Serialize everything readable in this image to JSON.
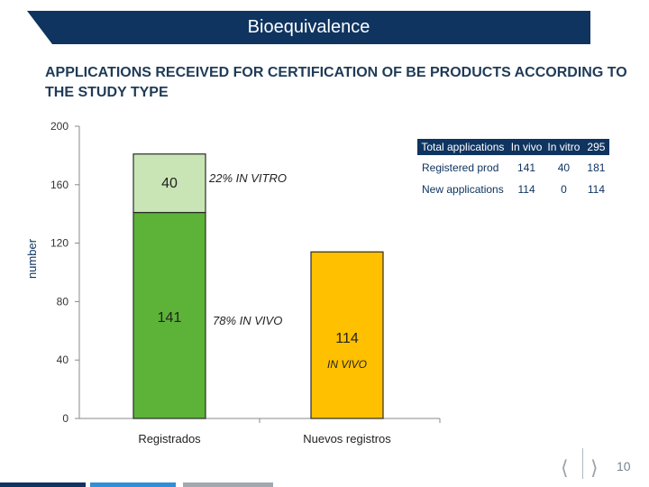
{
  "header": {
    "title": "Bioequivalence"
  },
  "subtitle": "APPLICATIONS RECEIVED FOR CERTIFICATION OF BE PRODUCTS ACCORDING TO THE STUDY TYPE",
  "chart_data": {
    "type": "bar",
    "stacked": true,
    "categories": [
      "Registrados",
      "Nuevos registros"
    ],
    "series": [
      {
        "values": [
          141,
          114
        ]
      },
      {
        "values": [
          40,
          0
        ]
      }
    ],
    "ylabel": "number",
    "ylim": [
      0,
      200
    ],
    "yticks": [
      0,
      40,
      80,
      120,
      160,
      200
    ],
    "data_labels": [
      "141",
      "40",
      "114"
    ],
    "annotations": [
      "22% IN VITRO",
      "78% IN VIVO",
      "IN VIVO"
    ],
    "colors": {
      "in_vivo_registered": "#5cb338",
      "in_vitro": "#c9e5b5",
      "in_vivo_new": "#ffc000"
    }
  },
  "table": {
    "headers": [
      "Total applications",
      "In vivo",
      "In vitro",
      "295"
    ],
    "rows": [
      [
        "Registered prod",
        "141",
        "40",
        "181"
      ],
      [
        "New applications",
        "114",
        "0",
        "114"
      ]
    ]
  },
  "footer": {
    "page_number": "10",
    "prev_icon": "chevron-left-icon",
    "next_icon": "chevron-right-icon"
  }
}
